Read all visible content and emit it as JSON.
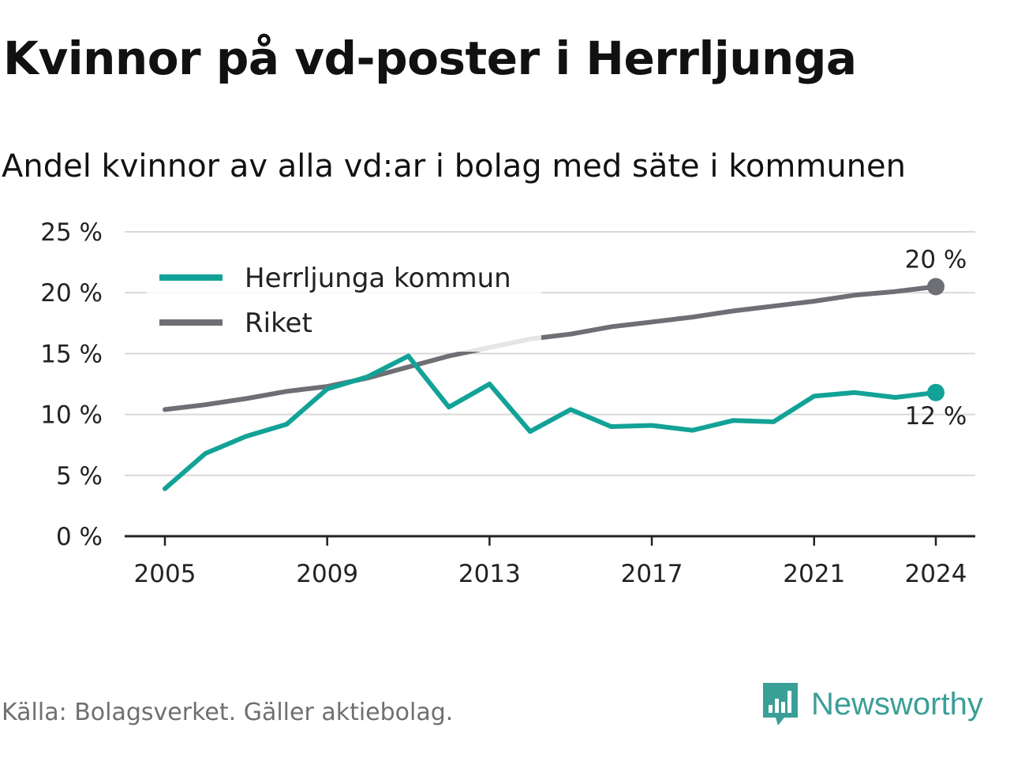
{
  "header": {
    "title": "Kvinnor på vd-poster i Herrljunga",
    "subtitle": "Andel kvinnor av alla vd:ar i bolag med säte i kommunen"
  },
  "footer": {
    "source": "Källa: Bolagsverket. Gäller aktiebolag.",
    "brand": "Newsworthy",
    "brand_color": "#3a9f97"
  },
  "chart_data": {
    "type": "line",
    "title": "Kvinnor på vd-poster i Herrljunga",
    "subtitle": "Andel kvinnor av alla vd:ar i bolag med säte i kommunen",
    "x": [
      2005,
      2006,
      2007,
      2008,
      2009,
      2010,
      2011,
      2012,
      2013,
      2014,
      2015,
      2016,
      2017,
      2018,
      2019,
      2020,
      2021,
      2022,
      2023,
      2024
    ],
    "x_ticks": [
      "2005",
      "2009",
      "2013",
      "2017",
      "2021",
      "2024"
    ],
    "ylim": [
      0,
      25
    ],
    "y_ticks": [
      "0 %",
      "5 %",
      "10 %",
      "15 %",
      "20 %",
      "25 %"
    ],
    "grid": true,
    "legend_position": "top-left",
    "series": [
      {
        "name": "Herrljunga kommun",
        "color": "#12a297",
        "values": [
          3.9,
          6.8,
          8.2,
          9.2,
          12.1,
          13.1,
          14.8,
          10.6,
          12.5,
          8.6,
          10.4,
          9.0,
          9.1,
          8.7,
          9.5,
          9.4,
          11.5,
          11.8,
          11.4,
          11.8
        ],
        "end_label": "12 %"
      },
      {
        "name": "Riket",
        "color": "#6e6e75",
        "values": [
          10.4,
          10.8,
          11.3,
          11.9,
          12.3,
          13.0,
          13.9,
          14.8,
          15.5,
          16.2,
          16.6,
          17.2,
          17.6,
          18.0,
          18.5,
          18.9,
          19.3,
          19.8,
          20.1,
          20.5
        ],
        "end_label": "20 %"
      }
    ]
  }
}
